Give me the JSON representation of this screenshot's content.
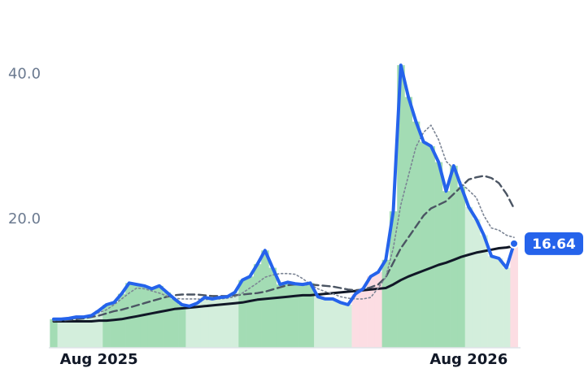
{
  "chart_data": {
    "type": "line",
    "categories": [
      null,
      null,
      null,
      null,
      null,
      null,
      "Aug 2025",
      null,
      null,
      null,
      null,
      null,
      null,
      null,
      null,
      null,
      null,
      null,
      null,
      null,
      null,
      null,
      null,
      null,
      null,
      null,
      null,
      null,
      null,
      null,
      null,
      null,
      null,
      null,
      null,
      null,
      null,
      null,
      null,
      null,
      null,
      null,
      null,
      null,
      null,
      null,
      null,
      null,
      null,
      null,
      null,
      null,
      null,
      null,
      null,
      "Aug 2026",
      null,
      null,
      null,
      null,
      null,
      null
    ],
    "series": [
      {
        "color": "#2563eb",
        "style": "solid",
        "width": 4,
        "values": [
          6.2,
          6.2,
          6.3,
          6.5,
          6.5,
          6.7,
          7.4,
          8.2,
          8.5,
          9.7,
          11.2,
          11.0,
          10.8,
          10.4,
          10.8,
          9.9,
          9.0,
          8.2,
          8.0,
          8.4,
          9.2,
          9.0,
          9.2,
          9.3,
          9.9,
          11.6,
          12.1,
          13.8,
          15.7,
          13.3,
          11.0,
          11.3,
          11.1,
          11.0,
          11.2,
          9.3,
          9.0,
          9.0,
          8.5,
          8.2,
          9.7,
          10.4,
          12.1,
          12.7,
          14.4,
          21.1,
          41.3,
          36.9,
          33.5,
          30.7,
          30.1,
          27.9,
          23.9,
          27.4,
          24.5,
          21.7,
          20.0,
          17.8,
          14.9,
          14.6,
          13.3,
          16.64
        ],
        "value_labels": [
          null,
          null,
          null,
          null,
          null,
          null,
          null,
          null,
          null,
          null,
          null,
          null,
          null,
          null,
          null,
          null,
          null,
          null,
          null,
          null,
          null,
          null,
          null,
          null,
          null,
          null,
          null,
          null,
          null,
          null,
          null,
          null,
          null,
          null,
          null,
          null,
          null,
          null,
          null,
          null,
          null,
          null,
          null,
          null,
          null,
          null,
          null,
          null,
          null,
          null,
          null,
          null,
          null,
          null,
          null,
          null,
          null,
          null,
          null,
          null,
          null,
          "16.64"
        ]
      },
      {
        "color": "#7b8494",
        "style": "dotted",
        "width": 1.6,
        "values": [
          6.0,
          6.1,
          6.2,
          6.3,
          6.5,
          6.8,
          7.1,
          7.5,
          8.2,
          9.0,
          9.8,
          10.5,
          10.4,
          10.1,
          9.8,
          9.4,
          9.1,
          9.0,
          9.0,
          9.0,
          8.9,
          9.0,
          9.0,
          9.1,
          9.3,
          9.8,
          10.5,
          11.2,
          12.0,
          12.3,
          12.5,
          12.5,
          12.4,
          11.8,
          11.0,
          10.4,
          10.0,
          9.7,
          9.3,
          9.1,
          9.0,
          9.0,
          9.2,
          10.5,
          12.0,
          16.0,
          22.0,
          26.0,
          30.0,
          32.0,
          33.0,
          31.0,
          28.0,
          27.0,
          25.0,
          24.0,
          23.0,
          20.5,
          18.8,
          18.5,
          17.8,
          17.5
        ]
      },
      {
        "color": "#4b5563",
        "style": "dashed",
        "width": 2.4,
        "values": [
          6.0,
          6.0,
          6.1,
          6.2,
          6.3,
          6.5,
          6.7,
          7.0,
          7.3,
          7.5,
          7.8,
          8.1,
          8.4,
          8.7,
          9.0,
          9.3,
          9.5,
          9.6,
          9.6,
          9.6,
          9.5,
          9.4,
          9.4,
          9.4,
          9.5,
          9.6,
          9.7,
          9.8,
          10.0,
          10.3,
          10.6,
          10.9,
          11.0,
          11.0,
          11.0,
          10.9,
          10.8,
          10.7,
          10.5,
          10.3,
          10.2,
          10.3,
          10.6,
          11.0,
          12.0,
          14.0,
          16.0,
          17.5,
          19.0,
          20.5,
          21.5,
          22.0,
          22.5,
          23.5,
          24.5,
          25.5,
          25.8,
          26.0,
          25.7,
          25.0,
          23.5,
          21.5
        ]
      },
      {
        "color": "#111827",
        "style": "solid",
        "width": 3,
        "values": [
          5.9,
          5.9,
          5.9,
          5.9,
          5.9,
          5.9,
          6.0,
          6.0,
          6.1,
          6.2,
          6.4,
          6.6,
          6.8,
          7.0,
          7.2,
          7.4,
          7.6,
          7.7,
          7.8,
          7.9,
          8.0,
          8.1,
          8.2,
          8.3,
          8.4,
          8.5,
          8.7,
          8.9,
          9.0,
          9.1,
          9.2,
          9.3,
          9.4,
          9.5,
          9.5,
          9.6,
          9.7,
          9.8,
          9.9,
          10.0,
          10.1,
          10.2,
          10.3,
          10.4,
          10.5,
          11.0,
          11.6,
          12.1,
          12.5,
          12.9,
          13.3,
          13.7,
          14.0,
          14.4,
          14.8,
          15.1,
          15.4,
          15.6,
          15.8,
          16.0,
          16.1,
          16.3
        ]
      }
    ],
    "regions": [
      {
        "from": 0,
        "to": 0,
        "color": "#a3dcb4"
      },
      {
        "from": 1,
        "to": 6,
        "color": "#d3eedc"
      },
      {
        "from": 7,
        "to": 17,
        "color": "#a3dcb4"
      },
      {
        "from": 18,
        "to": 24,
        "color": "#d3eedc"
      },
      {
        "from": 25,
        "to": 34,
        "color": "#a3dcb4"
      },
      {
        "from": 35,
        "to": 39,
        "color": "#d3eedc"
      },
      {
        "from": 40,
        "to": 43,
        "color": "#fcdde3"
      },
      {
        "from": 44,
        "to": 54,
        "color": "#a3dcb4"
      },
      {
        "from": 55,
        "to": 60,
        "color": "#d3eedc"
      },
      {
        "from": 61,
        "to": 61,
        "color": "#fcdde3"
      }
    ],
    "ylim": [
      2.25,
      50.3
    ],
    "yticks": [
      {
        "value": 20,
        "label": "20.0"
      },
      {
        "value": 40,
        "label": "40.0"
      }
    ],
    "grid": false
  }
}
